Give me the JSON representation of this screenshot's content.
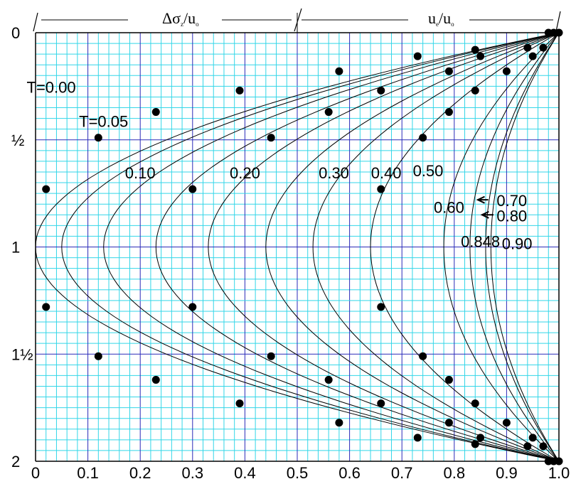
{
  "chart_data": {
    "type": "line",
    "title": "",
    "xlabel_left": "Δσ",
    "xlabel_left_sub1": "z",
    "xlabel_left_mid": "/u",
    "xlabel_left_sub2": "o",
    "xlabel_right": "u",
    "xlabel_right_sub1": "e",
    "xlabel_right_mid": "/u",
    "xlabel_right_sub2": "o",
    "ylabel": "",
    "xlim": [
      0,
      1.0
    ],
    "ylim": [
      0,
      2
    ],
    "y_inverted": true,
    "grid": true,
    "x_ticks": [
      "0",
      "0.1",
      "0.2",
      "0.3",
      "0.4",
      "0.5",
      "0.6",
      "0.7",
      "0.8",
      "0.9",
      "1.0"
    ],
    "y_ticks": [
      "0",
      "½",
      "1",
      "1½",
      "2"
    ],
    "series": [
      {
        "label": "T=0.00",
        "depth_at_1": 0.0
      },
      {
        "label": "T=0.05",
        "depth_at_1": 0.05
      },
      {
        "label": "0.10",
        "depth_at_1": 0.13
      },
      {
        "label": "0.20",
        "depth_at_1": 0.23
      },
      {
        "label": "0.30",
        "depth_at_1": 0.33
      },
      {
        "label": "0.40",
        "depth_at_1": 0.44
      },
      {
        "label": "0.50",
        "depth_at_1": 0.53
      },
      {
        "label": "0.60",
        "depth_at_1": 0.64
      },
      {
        "label": "0.70",
        "depth_at_1": 0.78
      },
      {
        "label": "0.80",
        "depth_at_1": 0.83
      },
      {
        "label": "0.848",
        "depth_at_1": 0.86
      },
      {
        "label": "0.90",
        "depth_at_1": 0.87
      }
    ],
    "points": [
      [
        0.98,
        0.0
      ],
      [
        0.99,
        0.0
      ],
      [
        1.0,
        0.0
      ],
      [
        0.94,
        0.07
      ],
      [
        0.97,
        0.07
      ],
      [
        0.84,
        0.08
      ],
      [
        0.95,
        0.11
      ],
      [
        0.73,
        0.11
      ],
      [
        0.85,
        0.11
      ],
      [
        0.58,
        0.18
      ],
      [
        0.79,
        0.18
      ],
      [
        0.9,
        0.18
      ],
      [
        0.39,
        0.27
      ],
      [
        0.66,
        0.27
      ],
      [
        0.84,
        0.27
      ],
      [
        0.23,
        0.37
      ],
      [
        0.56,
        0.37
      ],
      [
        0.79,
        0.37
      ],
      [
        0.12,
        0.49
      ],
      [
        0.45,
        0.49
      ],
      [
        0.74,
        0.49
      ],
      [
        0.02,
        0.73
      ],
      [
        0.3,
        0.73
      ],
      [
        0.66,
        0.73
      ],
      [
        0.02,
        1.28
      ],
      [
        0.3,
        1.28
      ],
      [
        0.66,
        1.28
      ],
      [
        0.12,
        1.51
      ],
      [
        0.45,
        1.51
      ],
      [
        0.74,
        1.51
      ],
      [
        0.23,
        1.62
      ],
      [
        0.56,
        1.62
      ],
      [
        0.79,
        1.62
      ],
      [
        0.39,
        1.73
      ],
      [
        0.66,
        1.73
      ],
      [
        0.84,
        1.73
      ],
      [
        0.58,
        1.82
      ],
      [
        0.79,
        1.82
      ],
      [
        0.9,
        1.82
      ],
      [
        0.73,
        1.89
      ],
      [
        0.85,
        1.89
      ],
      [
        0.84,
        1.92
      ],
      [
        0.95,
        1.89
      ],
      [
        0.94,
        1.93
      ],
      [
        0.97,
        1.93
      ],
      [
        0.98,
        2.0
      ],
      [
        0.99,
        2.0
      ],
      [
        1.0,
        2.0
      ]
    ]
  }
}
